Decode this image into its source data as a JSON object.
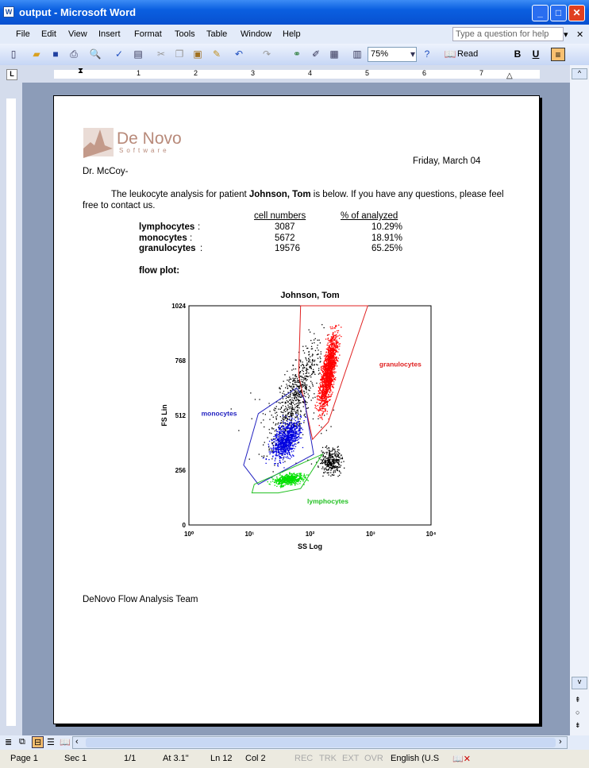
{
  "window": {
    "title": "output - Microsoft Word",
    "app_icon": "W"
  },
  "menu": [
    "File",
    "Edit",
    "View",
    "Insert",
    "Format",
    "Tools",
    "Table",
    "Window",
    "Help"
  ],
  "help_placeholder": "Type a question for help",
  "toolbar": {
    "zoom": "75%",
    "read_label": "Read",
    "bold": "B",
    "underline": "U"
  },
  "ruler_numbers": [
    "1",
    "2",
    "3",
    "4",
    "5",
    "6",
    "7"
  ],
  "letter": {
    "date": "Friday, March 04",
    "salutation": "Dr. McCoy-",
    "body_pre": "The leukocyte analysis for patient ",
    "patient": "Johnson, Tom",
    "body_post": " is below. If you have any questions, please feel free to contact us.",
    "col_cells": "cell numbers",
    "col_pct": "% of analyzed",
    "rows": [
      {
        "name": "lymphocytes",
        "cells": "3087",
        "pct": "10.29%"
      },
      {
        "name": "monocytes",
        "cells": "5672",
        "pct": "18.91%"
      },
      {
        "name": "granulocytes",
        "cells": "19576",
        "pct": "65.25%"
      }
    ],
    "flow_label": "flow plot",
    "signature": "DeNovo Flow Analysis Team",
    "logo_text": "De Novo Software"
  },
  "chart_data": {
    "type": "scatter",
    "title": "Johnson, Tom",
    "xlabel": "SS Log",
    "ylabel": "FS Lin",
    "xscale": "log",
    "xlim": [
      1,
      10000
    ],
    "ylim": [
      0,
      1024
    ],
    "xticks": [
      "10⁰",
      "10¹",
      "10²",
      "10³",
      "10⁴"
    ],
    "yticks": [
      "0",
      "256",
      "512",
      "768",
      "1024"
    ],
    "colors": {
      "granulocytes": "#ff0000",
      "monocytes": "#0000e0",
      "lymphocytes": "#00e000",
      "ungated": "#000000"
    },
    "gates": [
      {
        "name": "granulocytes",
        "label": "granulocytes",
        "color": "#e02020",
        "vertices": [
          [
            70,
            1024
          ],
          [
            900,
            1024
          ],
          [
            200,
            480
          ],
          [
            110,
            400
          ],
          [
            65,
            700
          ]
        ]
      },
      {
        "name": "monocytes",
        "label": "monocytes",
        "color": "#2020c0",
        "vertices": [
          [
            14,
            520
          ],
          [
            60,
            640
          ],
          [
            80,
            590
          ],
          [
            115,
            330
          ],
          [
            14,
            190
          ],
          [
            8,
            280
          ]
        ]
      },
      {
        "name": "lymphocytes",
        "label": "lymphocytes",
        "color": "#20c020",
        "vertices": [
          [
            11,
            150
          ],
          [
            12,
            190
          ],
          [
            160,
            330
          ],
          [
            70,
            170
          ],
          [
            30,
            150
          ]
        ]
      }
    ]
  },
  "status": {
    "page": "Page 1",
    "sec": "Sec 1",
    "pages": "1/1",
    "at": "At 3.1\"",
    "ln": "Ln 12",
    "col": "Col 2",
    "rec": "REC",
    "trk": "TRK",
    "ext": "EXT",
    "ovr": "OVR",
    "lang": "English (U.S"
  }
}
